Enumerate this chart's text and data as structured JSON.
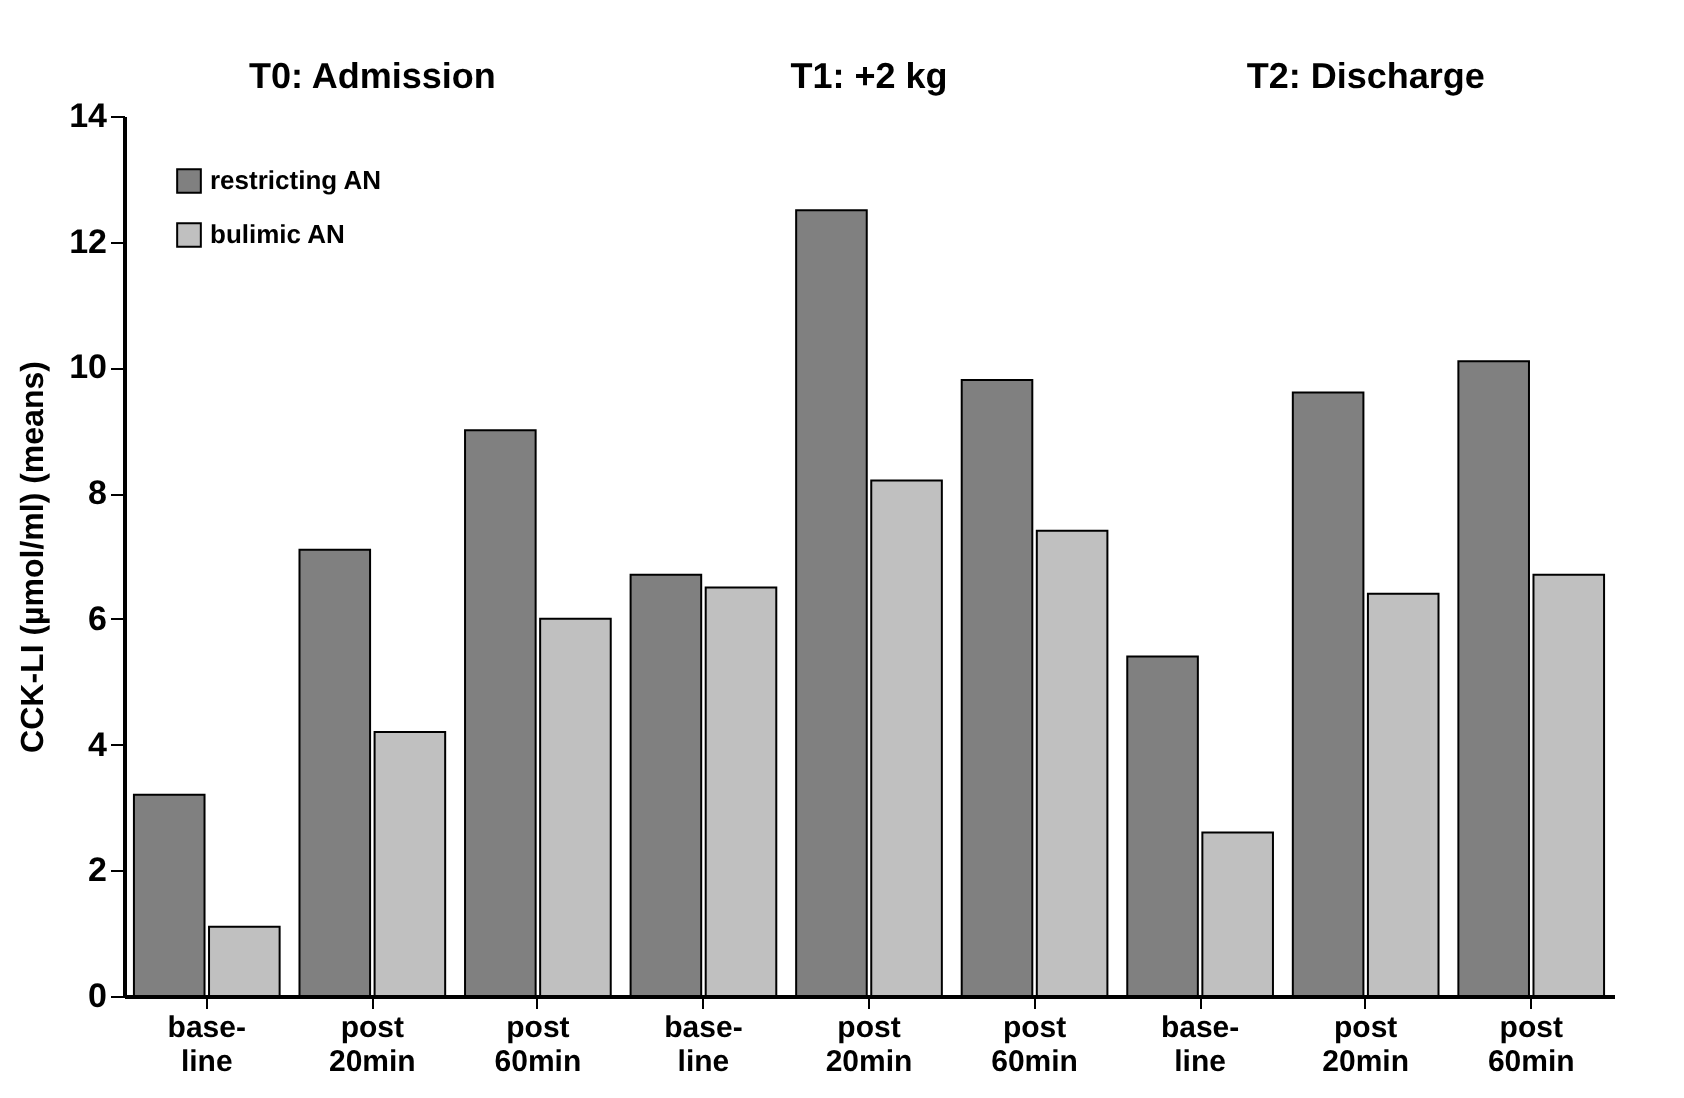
{
  "chart_data": {
    "type": "bar",
    "ylabel": "CCK-LI (µmol/ml) (means)",
    "categories": [
      "base-\nline",
      "post\n20min",
      "post\n60min",
      "base-\nline",
      "post\n20min",
      "post\n60min",
      "base-\nline",
      "post\n20min",
      "post\n60min"
    ],
    "series": [
      {
        "name": "restricting AN",
        "color": "#808080",
        "values": [
          3.2,
          7.1,
          9.0,
          6.7,
          12.5,
          9.8,
          5.4,
          9.6,
          10.1
        ]
      },
      {
        "name": "bulimic AN",
        "color": "#c0c0c0",
        "values": [
          1.1,
          4.2,
          6.0,
          6.5,
          8.2,
          7.4,
          2.6,
          6.4,
          6.7
        ]
      }
    ],
    "annotations": [
      "T0: Admission",
      "T1: +2 kg",
      "T2: Discharge"
    ],
    "ylim": [
      0,
      14
    ],
    "yticks": [
      0,
      2,
      4,
      6,
      8,
      10,
      12,
      14
    ],
    "grid": false,
    "legend": "top left"
  }
}
